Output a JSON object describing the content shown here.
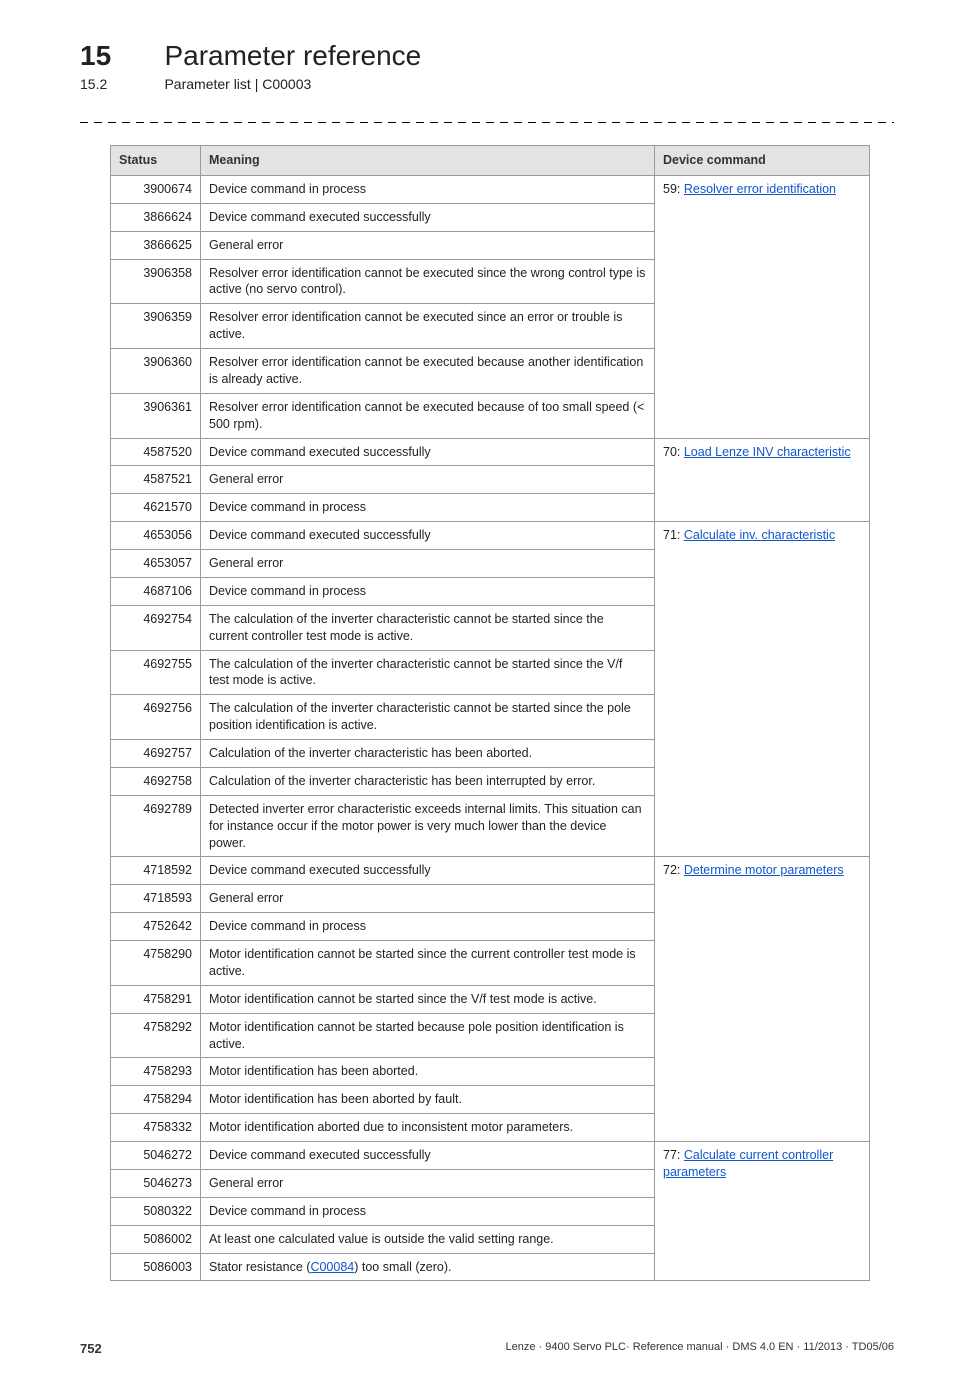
{
  "header": {
    "chapter_number": "15",
    "chapter_title": "Parameter reference",
    "section_number": "15.2",
    "section_title": "Parameter list | C00003"
  },
  "table": {
    "columns": [
      "Status",
      "Meaning",
      "Device command"
    ],
    "groups": [
      {
        "cmd_prefix": "59: ",
        "cmd_link": "Resolver error identification",
        "rows": [
          {
            "status": "3900674",
            "meaning": "Device command in process"
          },
          {
            "status": "3866624",
            "meaning": "Device command executed successfully"
          },
          {
            "status": "3866625",
            "meaning": "General error"
          },
          {
            "status": "3906358",
            "meaning": "Resolver error identification cannot be executed since the wrong control type is active (no servo control)."
          },
          {
            "status": "3906359",
            "meaning": "Resolver error identification cannot be executed since an error or trouble is active."
          },
          {
            "status": "3906360",
            "meaning": "Resolver error identification cannot be executed because another identification is already active."
          },
          {
            "status": "3906361",
            "meaning": "Resolver error identification cannot be executed because of too small speed (< 500 rpm)."
          }
        ]
      },
      {
        "cmd_prefix": "70: ",
        "cmd_link": "Load Lenze INV characteristic",
        "rows": [
          {
            "status": "4587520",
            "meaning": "Device command executed successfully"
          },
          {
            "status": "4587521",
            "meaning": "General error"
          },
          {
            "status": "4621570",
            "meaning": "Device command in process"
          }
        ]
      },
      {
        "cmd_prefix": "71: ",
        "cmd_link": "Calculate inv. characteristic",
        "rows": [
          {
            "status": "4653056",
            "meaning": "Device command executed successfully"
          },
          {
            "status": "4653057",
            "meaning": "General error"
          },
          {
            "status": "4687106",
            "meaning": "Device command in process"
          },
          {
            "status": "4692754",
            "meaning": "The calculation of the inverter characteristic cannot be started since the current controller test mode is active."
          },
          {
            "status": "4692755",
            "meaning": "The calculation of the inverter characteristic cannot be started since the V/f test mode is active."
          },
          {
            "status": "4692756",
            "meaning": "The calculation of the inverter characteristic cannot be started since the pole position identification is active."
          },
          {
            "status": "4692757",
            "meaning": "Calculation of the inverter characteristic has been aborted."
          },
          {
            "status": "4692758",
            "meaning": "Calculation of the inverter characteristic has been interrupted by error."
          },
          {
            "status": "4692789",
            "meaning": "Detected inverter error characteristic exceeds internal limits. This situation can for instance occur if the motor power is very much lower than the device power."
          }
        ]
      },
      {
        "cmd_prefix": "72: ",
        "cmd_link": "Determine motor parameters",
        "rows": [
          {
            "status": "4718592",
            "meaning": "Device command executed successfully"
          },
          {
            "status": "4718593",
            "meaning": "General error"
          },
          {
            "status": "4752642",
            "meaning": "Device command in process"
          },
          {
            "status": "4758290",
            "meaning": "Motor identification cannot be started since the current controller test mode is active."
          },
          {
            "status": "4758291",
            "meaning": "Motor identification cannot be started since the V/f test mode is active."
          },
          {
            "status": "4758292",
            "meaning": "Motor identification cannot be started because pole position identification is active."
          },
          {
            "status": "4758293",
            "meaning": "Motor identification has been aborted."
          },
          {
            "status": "4758294",
            "meaning": "Motor identification has been aborted by fault."
          },
          {
            "status": "4758332",
            "meaning": "Motor identification aborted due to inconsistent motor parameters."
          }
        ]
      },
      {
        "cmd_prefix": "77: ",
        "cmd_link": "Calculate current controller parameters",
        "rows": [
          {
            "status": "5046272",
            "meaning": "Device command executed successfully"
          },
          {
            "status": "5046273",
            "meaning": "General error"
          },
          {
            "status": "5080322",
            "meaning": "Device command in process"
          },
          {
            "status": "5086002",
            "meaning": "At least one calculated value is outside the valid setting range."
          },
          {
            "status": "5086003",
            "meaning_pre": "Stator resistance (",
            "meaning_link": "C00084",
            "meaning_post": ") too small (zero)."
          }
        ]
      }
    ]
  },
  "footer": {
    "page": "752",
    "info": "Lenze · 9400 Servo PLC· Reference manual · DMS 4.0 EN · 11/2013 · TD05/06"
  }
}
